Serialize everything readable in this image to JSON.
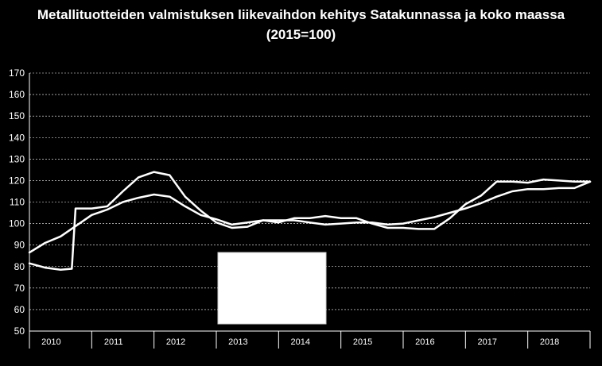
{
  "chart_data": {
    "type": "line",
    "title": "Metallituotteiden valmistuksen liikevaihdon kehitys Satakunnassa ja koko maassa",
    "subtitle": "(2015=100)",
    "ylim": [
      50,
      170
    ],
    "yticks": [
      50,
      60,
      70,
      80,
      90,
      100,
      110,
      120,
      130,
      140,
      150,
      160,
      170
    ],
    "year_labels": [
      "2010",
      "2011",
      "2012",
      "2013",
      "2014",
      "2015",
      "2016",
      "2017",
      "2018"
    ],
    "xlim": [
      2010.0,
      2019.0
    ],
    "grid": true,
    "legend": "none",
    "series": [
      {
        "color": "#ffffff",
        "points": [
          [
            2010.0,
            86.5
          ],
          [
            2010.25,
            91
          ],
          [
            2010.5,
            94
          ],
          [
            2010.75,
            99
          ],
          [
            2011.0,
            104
          ],
          [
            2011.25,
            106.5
          ],
          [
            2011.5,
            110
          ],
          [
            2011.75,
            112
          ],
          [
            2012.0,
            113.5
          ],
          [
            2012.25,
            112.5
          ],
          [
            2012.5,
            108
          ],
          [
            2012.75,
            104
          ],
          [
            2013.0,
            102
          ],
          [
            2013.25,
            99.5
          ],
          [
            2013.5,
            100.5
          ],
          [
            2013.75,
            101.5
          ],
          [
            2014.0,
            101.5
          ],
          [
            2014.25,
            101.5
          ],
          [
            2014.5,
            100.5
          ],
          [
            2014.75,
            99.5
          ],
          [
            2015.0,
            100
          ],
          [
            2015.25,
            100.5
          ],
          [
            2015.5,
            100.5
          ],
          [
            2015.75,
            99.5
          ],
          [
            2016.0,
            100
          ],
          [
            2016.25,
            101.5
          ],
          [
            2016.5,
            103
          ],
          [
            2016.75,
            105
          ],
          [
            2017.0,
            107
          ],
          [
            2017.25,
            109.5
          ],
          [
            2017.5,
            112.5
          ],
          [
            2017.75,
            115
          ],
          [
            2018.0,
            116
          ],
          [
            2018.25,
            116
          ],
          [
            2018.5,
            116.5
          ],
          [
            2018.75,
            116.5
          ],
          [
            2019.0,
            119.5
          ]
        ]
      },
      {
        "color": "#ffffff",
        "points": [
          [
            2010.0,
            81.5
          ],
          [
            2010.25,
            79.5
          ],
          [
            2010.5,
            78.5
          ],
          [
            2010.68,
            79
          ],
          [
            2010.74,
            107
          ],
          [
            2011.0,
            107
          ],
          [
            2011.25,
            108
          ],
          [
            2011.5,
            115
          ],
          [
            2011.75,
            121.5
          ],
          [
            2012.0,
            124
          ],
          [
            2012.25,
            122.5
          ],
          [
            2012.5,
            112.5
          ],
          [
            2012.75,
            106
          ],
          [
            2013.0,
            100.5
          ],
          [
            2013.25,
            98
          ],
          [
            2013.5,
            98.5
          ],
          [
            2013.75,
            101.5
          ],
          [
            2014.0,
            100.5
          ],
          [
            2014.25,
            102.5
          ],
          [
            2014.5,
            102.5
          ],
          [
            2014.75,
            103.5
          ],
          [
            2015.0,
            102.5
          ],
          [
            2015.25,
            102.5
          ],
          [
            2015.5,
            100
          ],
          [
            2015.75,
            98
          ],
          [
            2016.0,
            98
          ],
          [
            2016.25,
            97.5
          ],
          [
            2016.5,
            97.5
          ],
          [
            2016.75,
            102.5
          ],
          [
            2017.0,
            109
          ],
          [
            2017.25,
            113
          ],
          [
            2017.5,
            119.5
          ],
          [
            2017.75,
            119.5
          ],
          [
            2018.0,
            119
          ],
          [
            2018.25,
            120.5
          ],
          [
            2018.5,
            120
          ],
          [
            2018.75,
            119.5
          ],
          [
            2019.0,
            119.5
          ]
        ]
      }
    ]
  },
  "overlay": {
    "color": "#ffffff"
  }
}
